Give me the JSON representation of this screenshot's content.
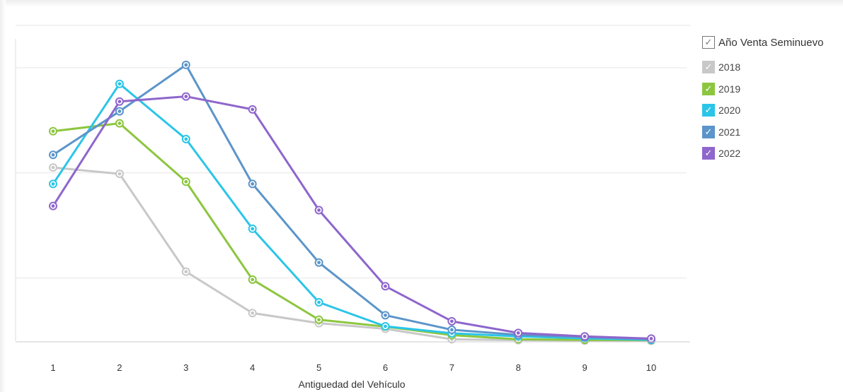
{
  "chart_data": {
    "type": "line",
    "title": "",
    "xlabel": "Antiguedad del Vehículo",
    "ylabel": "",
    "x": [
      1,
      2,
      3,
      4,
      5,
      6,
      7,
      8,
      9,
      10
    ],
    "ylim": [
      0,
      100
    ],
    "grid": true,
    "legend_position": "top-right",
    "legend_title": "Año Venta Seminuevo",
    "series": [
      {
        "name": "2018",
        "color": "#c8c8c8",
        "values": [
          55,
          53,
          22,
          8.9,
          5.7,
          3.9,
          0.6,
          0.3,
          0.2,
          0.1
        ]
      },
      {
        "name": "2019",
        "color": "#8cc63f",
        "values": [
          66.5,
          69,
          50.5,
          19.5,
          6.8,
          4.6,
          1.9,
          0.6,
          0.4,
          0.3
        ]
      },
      {
        "name": "2020",
        "color": "#2bc5e8",
        "values": [
          49.8,
          81.5,
          64,
          35.6,
          12.3,
          4.7,
          2.5,
          1.5,
          0.9,
          0.4
        ]
      },
      {
        "name": "2021",
        "color": "#5b95c9",
        "values": [
          59,
          72.8,
          87.5,
          49.8,
          24.9,
          8.2,
          3.6,
          2,
          1.3,
          0.6
        ]
      },
      {
        "name": "2022",
        "color": "#8e66cc",
        "values": [
          42.8,
          75.9,
          77.5,
          73.4,
          41.5,
          17.4,
          6.3,
          2.6,
          1.5,
          0.8
        ]
      }
    ]
  }
}
